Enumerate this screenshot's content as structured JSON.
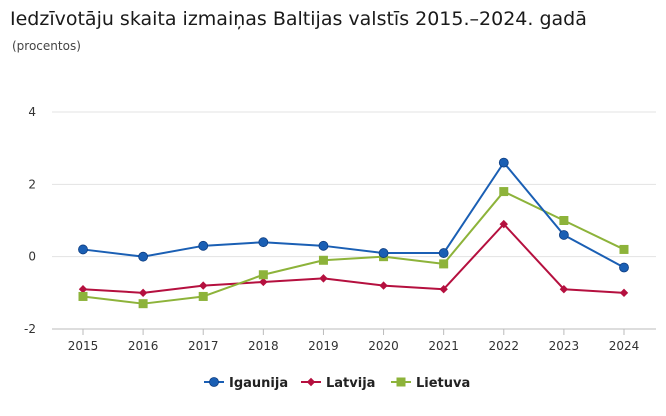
{
  "chart_data": {
    "type": "line",
    "title": "Iedzīvotāju skaita izmaiņas Baltijas valstīs 2015.–2024. gadā",
    "subtitle": "(procentos)",
    "x": [
      "2015",
      "2016",
      "2017",
      "2018",
      "2019",
      "2020",
      "2021",
      "2022",
      "2023",
      "2024"
    ],
    "ylim": [
      -2,
      4
    ],
    "yticks": [
      4,
      2,
      0,
      -2
    ],
    "grid": true,
    "legend_position": "bottom",
    "series": [
      {
        "name": "Igaunija",
        "color": "#1a5fb4",
        "marker": "circle",
        "values": [
          0.2,
          0.0,
          0.3,
          0.4,
          0.3,
          0.1,
          0.1,
          2.6,
          0.6,
          -0.3
        ]
      },
      {
        "name": "Latvija",
        "color": "#b5103f",
        "marker": "diamond",
        "values": [
          -0.9,
          -1.0,
          -0.8,
          -0.7,
          -0.6,
          -0.8,
          -0.9,
          0.9,
          -0.9,
          -1.0
        ]
      },
      {
        "name": "Lietuva",
        "color": "#8db33a",
        "marker": "square",
        "values": [
          -1.1,
          -1.3,
          -1.1,
          -0.5,
          -0.1,
          0.0,
          -0.2,
          1.8,
          1.0,
          0.2
        ]
      }
    ]
  }
}
